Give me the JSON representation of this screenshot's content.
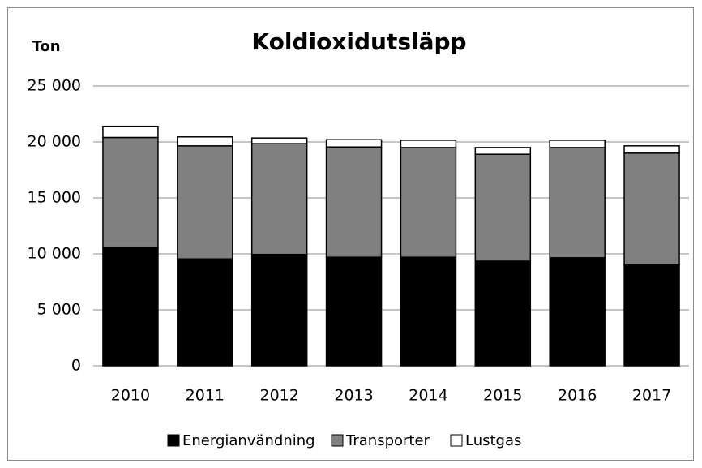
{
  "chart_data": {
    "type": "stacked-bar",
    "title": "Koldioxidutsläpp",
    "y_label": "Ton",
    "categories": [
      "2010",
      "2011",
      "2012",
      "2013",
      "2014",
      "2015",
      "2016",
      "2017"
    ],
    "series": [
      {
        "name": "Energianvändning",
        "color": "#000000",
        "values": [
          10600,
          9550,
          9950,
          9700,
          9700,
          9350,
          9650,
          9000
        ]
      },
      {
        "name": "Transporter",
        "color": "#808080",
        "values": [
          9800,
          10100,
          9900,
          9850,
          9800,
          9550,
          9850,
          10000
        ]
      },
      {
        "name": "Lustgas",
        "color": "#ffffff",
        "values": [
          1000,
          800,
          500,
          650,
          650,
          600,
          650,
          650
        ]
      }
    ],
    "ylim": [
      0,
      25000
    ],
    "yticks": [
      0,
      {
        "value": 5000,
        "label": "5 000"
      },
      {
        "value": 10000,
        "label": "10 000"
      },
      {
        "value": 15000,
        "label": "15 000"
      },
      {
        "value": 20000,
        "label": "20 000"
      },
      {
        "value": 25000,
        "label": "25 000"
      }
    ],
    "grid": true,
    "legend": "bottom"
  }
}
